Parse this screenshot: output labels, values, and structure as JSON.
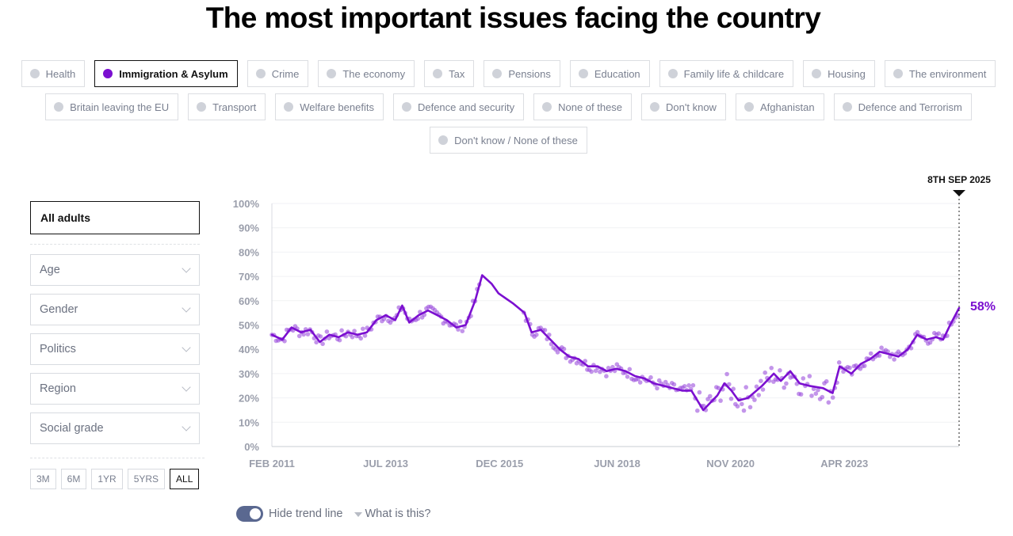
{
  "page": {
    "title": "The most important issues facing the country"
  },
  "tabs": {
    "rows": [
      [
        {
          "label": "Health",
          "active": false
        },
        {
          "label": "Immigration & Asylum",
          "active": true
        },
        {
          "label": "Crime",
          "active": false
        },
        {
          "label": "The economy",
          "active": false
        },
        {
          "label": "Tax",
          "active": false
        },
        {
          "label": "Pensions",
          "active": false
        },
        {
          "label": "Education",
          "active": false
        },
        {
          "label": "Family life & childcare",
          "active": false
        },
        {
          "label": "Housing",
          "active": false
        },
        {
          "label": "The environment",
          "active": false
        }
      ],
      [
        {
          "label": "Britain leaving the EU",
          "active": false
        },
        {
          "label": "Transport",
          "active": false
        },
        {
          "label": "Welfare benefits",
          "active": false
        },
        {
          "label": "Defence and security",
          "active": false
        },
        {
          "label": "None of these",
          "active": false
        },
        {
          "label": "Don't know",
          "active": false
        },
        {
          "label": "Afghanistan",
          "active": false
        },
        {
          "label": "Defence and Terrorism",
          "active": false
        }
      ],
      [
        {
          "label": "Don't know / None of these",
          "active": false
        }
      ]
    ],
    "active_color": "#7b0fd0",
    "inactive_dot_color": "#cfd2d9"
  },
  "sidebar": {
    "audience": "All adults",
    "filters": [
      {
        "label": "Age",
        "icon": "chevron-down-icon"
      },
      {
        "label": "Gender",
        "icon": "chevron-down-icon"
      },
      {
        "label": "Politics",
        "icon": "chevron-down-icon"
      },
      {
        "label": "Region",
        "icon": "chevron-down-icon"
      },
      {
        "label": "Social grade",
        "icon": "chevron-down-icon"
      }
    ],
    "ranges": [
      {
        "label": "3M",
        "active": false
      },
      {
        "label": "6M",
        "active": false
      },
      {
        "label": "1YR",
        "active": false
      },
      {
        "label": "5YRS",
        "active": false
      },
      {
        "label": "ALL",
        "active": true
      }
    ]
  },
  "controls": {
    "toggle_label": "Hide trend line",
    "toggle_on": true,
    "help_label": "What is this?"
  },
  "chart_data": {
    "type": "line",
    "title": "Immigration & Asylum",
    "series_name": "Immigration & Asylum",
    "color": "#7b0fd0",
    "ylabel": "",
    "xlabel": "",
    "ylim": [
      0,
      100
    ],
    "xlim": [
      2011.08,
      2025.69
    ],
    "yticks": [
      "0%",
      "10%",
      "20%",
      "30%",
      "40%",
      "50%",
      "60%",
      "70%",
      "80%",
      "90%",
      "100%"
    ],
    "xticks": [
      {
        "label": "FEB 2011",
        "x": 2011.08
      },
      {
        "label": "JUL 2013",
        "x": 2013.5
      },
      {
        "label": "DEC 2015",
        "x": 2015.92
      },
      {
        "label": "JUN 2018",
        "x": 2018.42
      },
      {
        "label": "NOV 2020",
        "x": 2020.83
      },
      {
        "label": "APR 2023",
        "x": 2023.25
      }
    ],
    "grid": true,
    "current_marker": {
      "label": "8TH SEP 2025",
      "x": 2025.69,
      "value_label": "58%",
      "value": 58
    },
    "trend": [
      [
        2011.08,
        46
      ],
      [
        2011.3,
        44
      ],
      [
        2011.5,
        49
      ],
      [
        2011.7,
        47
      ],
      [
        2011.9,
        48
      ],
      [
        2012.1,
        43
      ],
      [
        2012.3,
        46
      ],
      [
        2012.5,
        45
      ],
      [
        2012.7,
        47
      ],
      [
        2012.9,
        46
      ],
      [
        2013.1,
        47
      ],
      [
        2013.3,
        52
      ],
      [
        2013.5,
        54
      ],
      [
        2013.7,
        52
      ],
      [
        2013.85,
        58
      ],
      [
        2014.0,
        51
      ],
      [
        2014.2,
        54
      ],
      [
        2014.4,
        56
      ],
      [
        2014.6,
        54
      ],
      [
        2014.8,
        52
      ],
      [
        2015.0,
        49
      ],
      [
        2015.2,
        50
      ],
      [
        2015.4,
        60
      ],
      [
        2015.55,
        70.5
      ],
      [
        2015.75,
        67
      ],
      [
        2015.9,
        63
      ],
      [
        2016.2,
        59
      ],
      [
        2016.45,
        55
      ],
      [
        2016.6,
        47
      ],
      [
        2016.8,
        48
      ],
      [
        2017.0,
        44
      ],
      [
        2017.2,
        40
      ],
      [
        2017.4,
        37
      ],
      [
        2017.6,
        36
      ],
      [
        2017.8,
        33
      ],
      [
        2018.0,
        33
      ],
      [
        2018.2,
        31
      ],
      [
        2018.4,
        32
      ],
      [
        2018.6,
        31
      ],
      [
        2018.8,
        29
      ],
      [
        2019.0,
        28
      ],
      [
        2019.2,
        26
      ],
      [
        2019.4,
        25
      ],
      [
        2019.6,
        24
      ],
      [
        2019.8,
        23
      ],
      [
        2020.0,
        23
      ],
      [
        2020.25,
        15
      ],
      [
        2020.4,
        18
      ],
      [
        2020.55,
        21
      ],
      [
        2020.7,
        26
      ],
      [
        2020.85,
        23
      ],
      [
        2021.0,
        19
      ],
      [
        2021.2,
        20
      ],
      [
        2021.5,
        25
      ],
      [
        2021.75,
        30
      ],
      [
        2021.9,
        27
      ],
      [
        2022.1,
        31
      ],
      [
        2022.3,
        26
      ],
      [
        2022.5,
        25
      ],
      [
        2022.8,
        24
      ],
      [
        2023.0,
        22
      ],
      [
        2023.15,
        33
      ],
      [
        2023.4,
        30
      ],
      [
        2023.6,
        34
      ],
      [
        2023.8,
        36
      ],
      [
        2024.0,
        39
      ],
      [
        2024.2,
        38
      ],
      [
        2024.4,
        37
      ],
      [
        2024.6,
        40
      ],
      [
        2024.8,
        46
      ],
      [
        2025.0,
        44
      ],
      [
        2025.2,
        45
      ],
      [
        2025.35,
        44
      ],
      [
        2025.5,
        50
      ],
      [
        2025.69,
        57
      ]
    ]
  }
}
